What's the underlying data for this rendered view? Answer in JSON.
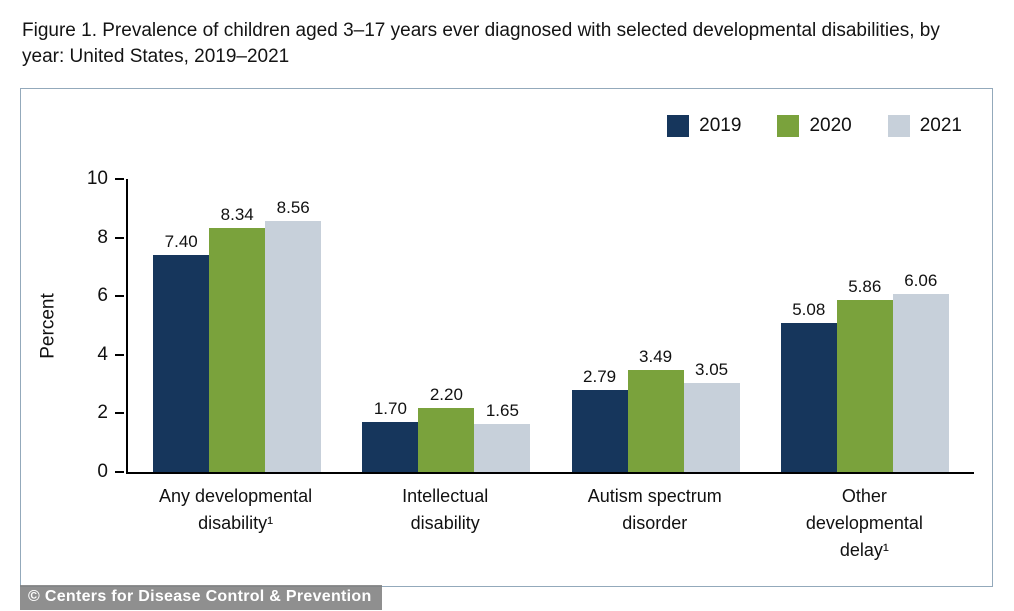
{
  "figure_title": "Figure 1. Prevalence of children aged 3–17 years ever diagnosed with selected developmental disabilities, by year: United States, 2019–2021",
  "watermark": "© Centers for Disease Control & Prevention",
  "colors": {
    "axis": "#000000",
    "box_border": "#93a9bb",
    "series_2019": "#16365c",
    "series_2020": "#7aa23c",
    "series_2021": "#c7d0da"
  },
  "chart_data": {
    "type": "bar",
    "title": "Figure 1. Prevalence of children aged 3–17 years ever diagnosed with selected developmental disabilities, by year: United States, 2019–2021",
    "xlabel": "",
    "ylabel": "Percent",
    "ylim": [
      0,
      10
    ],
    "yticks": [
      0,
      2,
      4,
      6,
      8,
      10
    ],
    "grid": false,
    "legend_position": "top-right",
    "value_label_decimals": 2,
    "categories": [
      "Any developmental\ndisability¹",
      "Intellectual\ndisability",
      "Autism spectrum\ndisorder",
      "Other\ndevelopmental\ndelay¹"
    ],
    "series": [
      {
        "name": "2019",
        "color": "#16365c",
        "values": [
          7.4,
          1.7,
          2.79,
          5.08
        ]
      },
      {
        "name": "2020",
        "color": "#7aa23c",
        "values": [
          8.34,
          2.2,
          3.49,
          5.86
        ]
      },
      {
        "name": "2021",
        "color": "#c7d0da",
        "values": [
          8.56,
          1.65,
          3.05,
          6.06
        ]
      }
    ]
  }
}
